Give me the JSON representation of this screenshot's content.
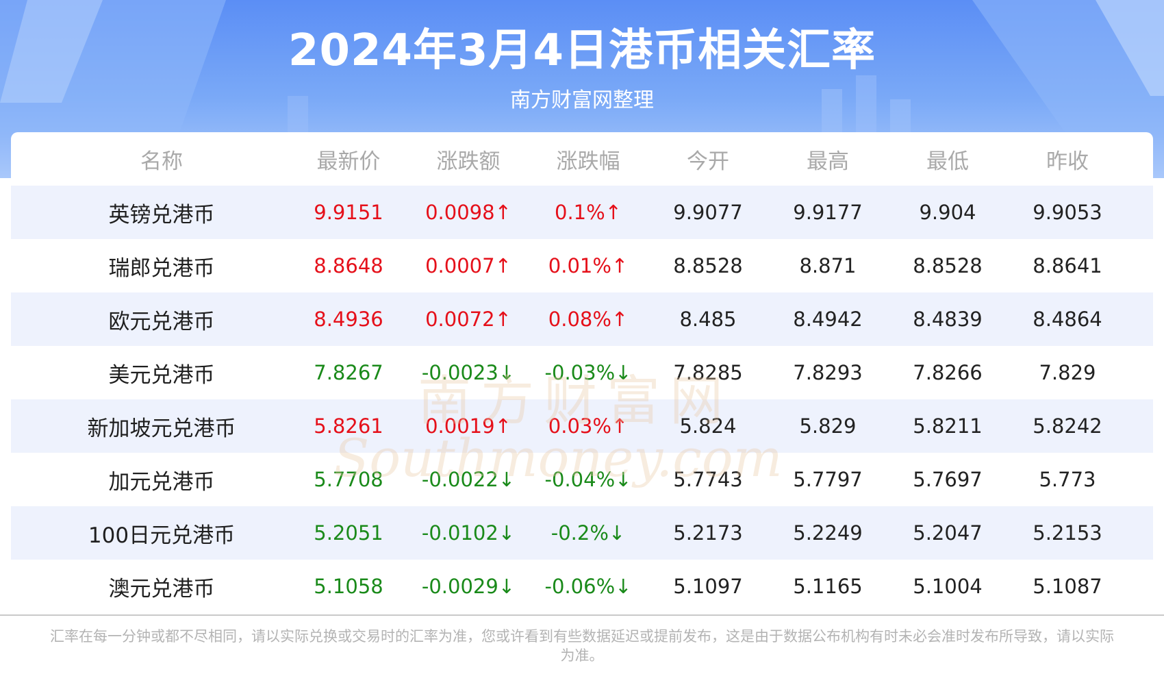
{
  "header": {
    "title": "2024年3月4日港币相关汇率",
    "subtitle": "南方财富网整理"
  },
  "colors": {
    "up": "#e5101a",
    "down": "#1a8a1a",
    "header_blue": "#5b8ef5",
    "row_alt": "#eef2fd"
  },
  "watermark": {
    "cn": "南方财富网",
    "en": "Southmoney.com"
  },
  "chart_data": {
    "type": "table",
    "title": "2024年3月4日港币相关汇率",
    "columns": [
      "名称",
      "最新价",
      "涨跌额",
      "涨跌幅",
      "今开",
      "最高",
      "最低",
      "昨收"
    ],
    "rows": [
      {
        "name": "英镑兑港币",
        "latest": "9.9151",
        "change": "0.0098↑",
        "change_pct": "0.1%↑",
        "open": "9.9077",
        "high": "9.9177",
        "low": "9.904",
        "prev_close": "9.9053",
        "trend": "up"
      },
      {
        "name": "瑞郎兑港币",
        "latest": "8.8648",
        "change": "0.0007↑",
        "change_pct": "0.01%↑",
        "open": "8.8528",
        "high": "8.871",
        "low": "8.8528",
        "prev_close": "8.8641",
        "trend": "up"
      },
      {
        "name": "欧元兑港币",
        "latest": "8.4936",
        "change": "0.0072↑",
        "change_pct": "0.08%↑",
        "open": "8.485",
        "high": "8.4942",
        "low": "8.4839",
        "prev_close": "8.4864",
        "trend": "up"
      },
      {
        "name": "美元兑港币",
        "latest": "7.8267",
        "change": "-0.0023↓",
        "change_pct": "-0.03%↓",
        "open": "7.8285",
        "high": "7.8293",
        "low": "7.8266",
        "prev_close": "7.829",
        "trend": "down"
      },
      {
        "name": "新加坡元兑港币",
        "latest": "5.8261",
        "change": "0.0019↑",
        "change_pct": "0.03%↑",
        "open": "5.824",
        "high": "5.829",
        "low": "5.8211",
        "prev_close": "5.8242",
        "trend": "up"
      },
      {
        "name": "加元兑港币",
        "latest": "5.7708",
        "change": "-0.0022↓",
        "change_pct": "-0.04%↓",
        "open": "5.7743",
        "high": "5.7797",
        "low": "5.7697",
        "prev_close": "5.773",
        "trend": "down"
      },
      {
        "name": "100日元兑港币",
        "latest": "5.2051",
        "change": "-0.0102↓",
        "change_pct": "-0.2%↓",
        "open": "5.2173",
        "high": "5.2249",
        "low": "5.2047",
        "prev_close": "5.2153",
        "trend": "down"
      },
      {
        "name": "澳元兑港币",
        "latest": "5.1058",
        "change": "-0.0029↓",
        "change_pct": "-0.06%↓",
        "open": "5.1097",
        "high": "5.1165",
        "low": "5.1004",
        "prev_close": "5.1087",
        "trend": "down"
      }
    ]
  },
  "footnote": "汇率在每一分钟或都不尽相同，请以实际兑换或交易时的汇率为准，您或许看到有些数据延迟或提前发布，这是由于数据公布机构有时未必会准时发布所导致，请以实际为准。"
}
